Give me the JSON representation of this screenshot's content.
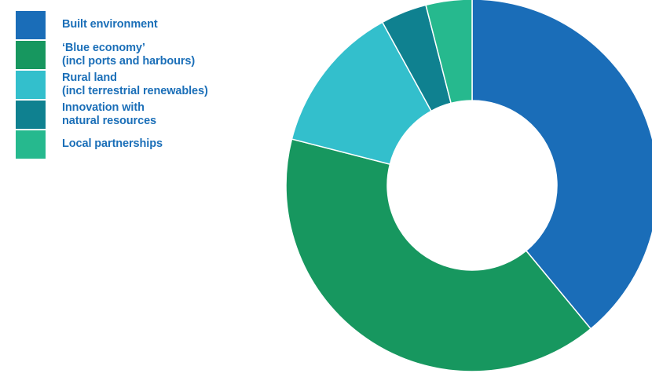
{
  "chart_data": {
    "type": "pie",
    "variant": "donut",
    "legend_position": "top-left",
    "slices": [
      {
        "label": "Built environment",
        "value": 39,
        "color": "#1a6db8"
      },
      {
        "label": "‘Blue economy’\n(incl ports and harbours)",
        "value": 40,
        "color": "#17975f"
      },
      {
        "label": "Rural land\n(incl terrestrial renewables)",
        "value": 13,
        "color": "#33bfcc"
      },
      {
        "label": "Innovation with\nnatural resources",
        "value": 4,
        "color": "#0f8190"
      },
      {
        "label": "Local partnerships",
        "value": 4,
        "color": "#26b98e"
      }
    ]
  }
}
